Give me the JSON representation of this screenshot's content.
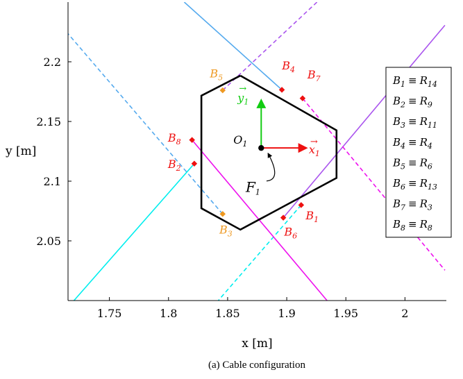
{
  "chart_data": {
    "type": "line",
    "caption": "(a) Cable configuration",
    "xlabel": "x [m]",
    "ylabel": "y [m]",
    "xlim": [
      1.715,
      2.035
    ],
    "ylim": [
      2.0,
      2.25
    ],
    "xticks": [
      "1.75",
      "1.8",
      "1.85",
      "1.9",
      "1.95",
      "2"
    ],
    "yticks": [
      "2.05",
      "2.1",
      "2.15",
      "2.2"
    ],
    "platform": {
      "x": [
        1.8608,
        1.9421,
        1.9421,
        1.8608,
        1.8278,
        1.8278,
        1.8608
      ],
      "y": [
        2.1884,
        2.1426,
        2.1027,
        2.0594,
        2.0773,
        2.1716,
        2.1884
      ]
    },
    "frame": {
      "origin_label": "O",
      "origin_sub": "1",
      "origin": [
        1.8784,
        2.1278
      ],
      "x_axis_label": "x",
      "x_axis_sub": "1",
      "y_axis_label": "y",
      "y_axis_sub": "1",
      "frame_label": "F",
      "frame_sub": "1",
      "x_axis_end": [
        1.9163,
        2.1278
      ],
      "y_axis_end": [
        1.8784,
        2.1676
      ],
      "frame_label_pos": [
        1.87,
        2.0955
      ]
    },
    "series": [
      {
        "color": "#55aaee",
        "dash": "none",
        "x": [
          1.8959,
          1.8133
        ],
        "y": [
          2.1765,
          2.25
        ]
      },
      {
        "color": "#55aaee",
        "dash": "6,4",
        "x": [
          1.8458,
          1.715
        ],
        "y": [
          2.0725,
          2.2235
        ]
      },
      {
        "color": "#00eeee",
        "dash": "none",
        "x": [
          1.8218,
          1.72
        ],
        "y": [
          2.1147,
          2.0
        ]
      },
      {
        "color": "#00eeee",
        "dash": "6,4",
        "x": [
          1.9122,
          1.8421
        ],
        "y": [
          2.08,
          2.0
        ]
      },
      {
        "color": "#aa55ee",
        "dash": "none",
        "x": [
          1.8971,
          2.0338
        ],
        "y": [
          2.0694,
          2.2306
        ]
      },
      {
        "color": "#aa55ee",
        "dash": "6,4",
        "x": [
          1.8458,
          1.9256
        ],
        "y": [
          2.1761,
          2.25
        ]
      },
      {
        "color": "#ee11ee",
        "dash": "none",
        "x": [
          1.8199,
          1.9341
        ],
        "y": [
          2.1345,
          2.0
        ]
      },
      {
        "color": "#ee11ee",
        "dash": "6,4",
        "x": [
          1.9134,
          2.0338
        ],
        "y": [
          2.1694,
          2.0254
        ]
      }
    ],
    "points": [
      {
        "label": "B",
        "sub": "1",
        "color": "#ee1111",
        "x": 1.9122,
        "y": 2.08,
        "lx": 1.916,
        "ly": 2.068
      },
      {
        "label": "B",
        "sub": "2",
        "color": "#ee1111",
        "x": 1.8218,
        "y": 2.1147,
        "lx": 1.7995,
        "ly": 2.111
      },
      {
        "label": "B",
        "sub": "3",
        "color": "#ee9922",
        "x": 1.8458,
        "y": 2.0725,
        "lx": 1.843,
        "ly": 2.056
      },
      {
        "label": "B",
        "sub": "4",
        "color": "#ee1111",
        "x": 1.8959,
        "y": 2.1765,
        "lx": 1.896,
        "ly": 2.1935
      },
      {
        "label": "B",
        "sub": "5",
        "color": "#ee9922",
        "x": 1.8458,
        "y": 2.1761,
        "lx": 1.835,
        "ly": 2.187
      },
      {
        "label": "B",
        "sub": "6",
        "color": "#ee1111",
        "x": 1.8971,
        "y": 2.0694,
        "lx": 1.8978,
        "ly": 2.0545
      },
      {
        "label": "B",
        "sub": "7",
        "color": "#ee1111",
        "x": 1.9134,
        "y": 2.1694,
        "lx": 1.9175,
        "ly": 2.186
      },
      {
        "label": "B",
        "sub": "8",
        "color": "#ee1111",
        "x": 1.8199,
        "y": 2.1345,
        "lx": 1.7995,
        "ly": 2.133
      }
    ],
    "legend": {
      "placement": "right",
      "entries": [
        {
          "lhs": "B",
          "lhs_sub": "1",
          "op": "≡",
          "rhs": "R",
          "rhs_sub": "14"
        },
        {
          "lhs": "B",
          "lhs_sub": "2",
          "op": "≡",
          "rhs": "R",
          "rhs_sub": "9"
        },
        {
          "lhs": "B",
          "lhs_sub": "3",
          "op": "≡",
          "rhs": "R",
          "rhs_sub": "11"
        },
        {
          "lhs": "B",
          "lhs_sub": "4",
          "op": "≡",
          "rhs": "R",
          "rhs_sub": "4"
        },
        {
          "lhs": "B",
          "lhs_sub": "5",
          "op": "≡",
          "rhs": "R",
          "rhs_sub": "6"
        },
        {
          "lhs": "B",
          "lhs_sub": "6",
          "op": "≡",
          "rhs": "R",
          "rhs_sub": "13"
        },
        {
          "lhs": "B",
          "lhs_sub": "7",
          "op": "≡",
          "rhs": "R",
          "rhs_sub": "3"
        },
        {
          "lhs": "B",
          "lhs_sub": "8",
          "op": "≡",
          "rhs": "R",
          "rhs_sub": "8"
        }
      ]
    },
    "colors": {
      "platform": "#000000",
      "frame_x": "#ee1111",
      "frame_y": "#11cc11"
    }
  }
}
